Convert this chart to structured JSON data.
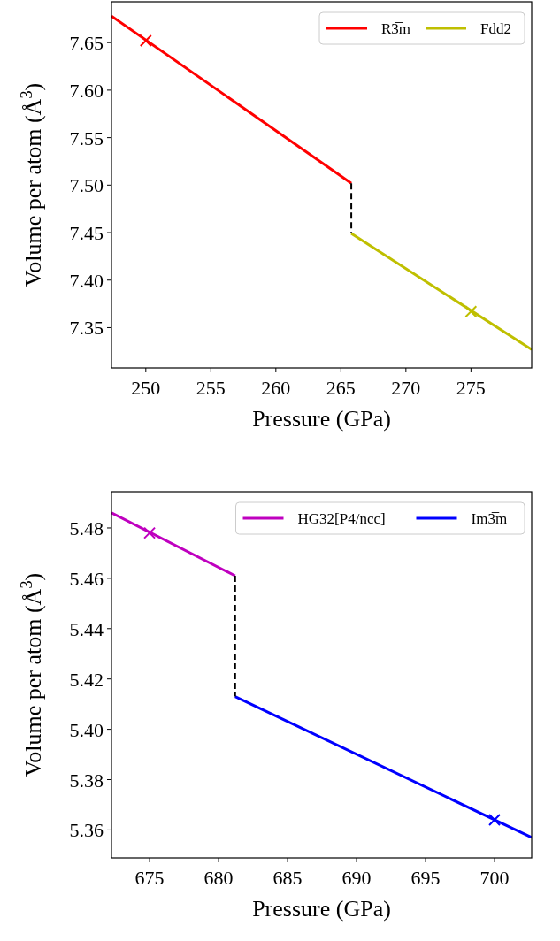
{
  "chart_data": [
    {
      "type": "line",
      "xlabel": "Pressure (GPa)",
      "ylabel": "Volume per atom (Å$^{3}$)",
      "xlim": [
        247.36,
        279.67
      ],
      "ylim": [
        7.3076,
        7.693
      ],
      "xticks": [
        250,
        255,
        260,
        265,
        270,
        275
      ],
      "yticks": [
        7.35,
        {
          "value": 7.4,
          "label": "7.40"
        },
        7.45,
        {
          "value": 7.5,
          "label": "7.50"
        },
        7.55,
        {
          "value": 7.6,
          "label": "7.60"
        },
        7.65
      ],
      "legend": "top right",
      "series": [
        {
          "name": "R3̅m",
          "color": "#ff0000",
          "x": [
            247.36,
            265.8
          ],
          "values": [
            7.678,
            7.502
          ]
        },
        {
          "name": "Fdd2",
          "color": "#bfbf00",
          "x": [
            265.8,
            279.67
          ],
          "values": [
            7.449,
            7.327
          ]
        },
        {
          "type": "line",
          "color": "#000000",
          "line_style": "dashed",
          "x": [
            265.8,
            265.8
          ],
          "values": [
            7.502,
            7.449
          ]
        },
        {
          "type": "scatter",
          "marker": "cross",
          "color": "#ff0000",
          "x": [
            250
          ],
          "values": [
            7.652
          ]
        },
        {
          "type": "scatter",
          "marker": "cross",
          "color": "#bfbf00",
          "x": [
            275
          ],
          "values": [
            7.367
          ]
        }
      ]
    },
    {
      "type": "line",
      "xlabel": "Pressure (GPa)",
      "ylabel": "Volume per atom (Å$^{3}$)",
      "xlim": [
        672.24,
        702.69
      ],
      "ylim": [
        5.3489,
        5.4944
      ],
      "xticks": [
        675,
        680,
        685,
        690,
        695,
        700
      ],
      "yticks": [
        5.36,
        5.38,
        {
          "value": 5.4,
          "label": "5.40"
        },
        5.42,
        5.44,
        5.46,
        5.48
      ],
      "legend": "top right",
      "series": [
        {
          "name": "HG32[P4/ncc]",
          "color": "#bf00bf",
          "x": [
            672.24,
            681.2
          ],
          "values": [
            5.486,
            5.461
          ]
        },
        {
          "name": "Im3̅m",
          "color": "#0000ff",
          "x": [
            681.2,
            702.69
          ],
          "values": [
            5.413,
            5.357
          ]
        },
        {
          "type": "line",
          "color": "#000000",
          "line_style": "dashed",
          "x": [
            681.2,
            681.2
          ],
          "values": [
            5.461,
            5.413
          ]
        },
        {
          "type": "scatter",
          "marker": "cross",
          "color": "#bf00bf",
          "x": [
            675
          ],
          "values": [
            5.478
          ]
        },
        {
          "type": "scatter",
          "marker": "cross",
          "color": "#0000ff",
          "x": [
            700
          ],
          "values": [
            5.364
          ]
        }
      ]
    }
  ]
}
